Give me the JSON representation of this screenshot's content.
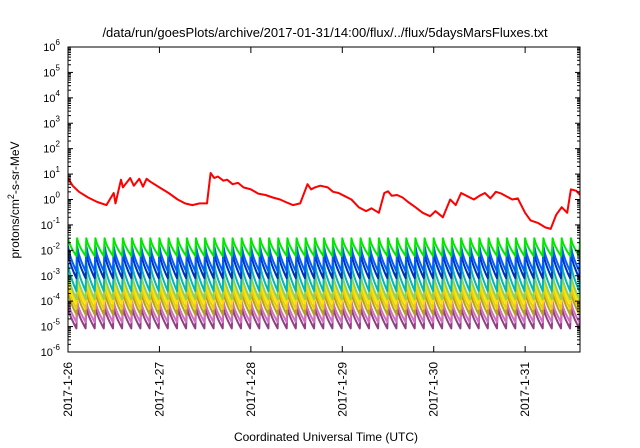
{
  "chart_data": {
    "type": "line",
    "title": "/data/run/goesPlots/archive/2017-01-31/14:00/flux/../flux/5daysMarsFluxes.txt",
    "xlabel": "Coordinated Universal Time (UTC)",
    "ylabel": {
      "prefix": "protons/cm",
      "sup": "2",
      "suffix": "-s-sr-MeV"
    },
    "yscale": "log",
    "ylim_exponents": [
      -6,
      6
    ],
    "y_ticks": [
      {
        "base": "10",
        "exp": "-6"
      },
      {
        "base": "10",
        "exp": "-5"
      },
      {
        "base": "10",
        "exp": "-4"
      },
      {
        "base": "10",
        "exp": "-3"
      },
      {
        "base": "10",
        "exp": "-2"
      },
      {
        "base": "10",
        "exp": "-1"
      },
      {
        "base": "10",
        "exp": "0"
      },
      {
        "base": "10",
        "exp": "1"
      },
      {
        "base": "10",
        "exp": "2"
      },
      {
        "base": "10",
        "exp": "3"
      },
      {
        "base": "10",
        "exp": "4"
      },
      {
        "base": "10",
        "exp": "5"
      },
      {
        "base": "10",
        "exp": "6"
      }
    ],
    "xlim_days": [
      0,
      5.6
    ],
    "x_ticks": [
      "2017-1-26",
      "2017-1-27",
      "2017-1-28",
      "2017-1-29",
      "2017-1-30",
      "2017-1-31"
    ],
    "grid": false,
    "legend": "none",
    "series": [
      {
        "color": "#ff0000",
        "x": [
          0.0,
          0.05,
          0.12,
          0.22,
          0.32,
          0.42,
          0.5,
          0.52,
          0.58,
          0.6,
          0.68,
          0.72,
          0.78,
          0.82,
          0.86,
          0.9,
          1.0,
          1.1,
          1.2,
          1.28,
          1.36,
          1.44,
          1.52,
          1.56,
          1.6,
          1.64,
          1.7,
          1.74,
          1.8,
          1.86,
          1.92,
          2.0,
          2.08,
          2.16,
          2.24,
          2.32,
          2.38,
          2.46,
          2.54,
          2.62,
          2.66,
          2.7,
          2.76,
          2.84,
          2.9,
          2.96,
          3.02,
          3.1,
          3.18,
          3.26,
          3.32,
          3.4,
          3.46,
          3.5,
          3.54,
          3.6,
          3.66,
          3.72,
          3.8,
          3.88,
          3.96,
          4.02,
          4.1,
          4.18,
          4.24,
          4.3,
          4.36,
          4.44,
          4.5,
          4.56,
          4.62,
          4.68,
          4.74,
          4.8,
          4.86,
          4.92,
          5.0,
          5.06,
          5.14,
          5.22,
          5.28,
          5.34,
          5.4,
          5.46,
          5.5,
          5.56,
          5.6
        ],
        "y": [
          7,
          3.5,
          2,
          1.2,
          0.8,
          0.6,
          1.8,
          0.7,
          6,
          3,
          7,
          3.5,
          6.5,
          3.2,
          6.5,
          5,
          3,
          1.8,
          1,
          0.7,
          0.6,
          0.7,
          0.7,
          11,
          7,
          8,
          5.5,
          6,
          4,
          4.5,
          3,
          2.5,
          1.7,
          1.5,
          1.2,
          1,
          0.8,
          0.6,
          0.7,
          4,
          2.5,
          3,
          3.5,
          3,
          2,
          1.8,
          1.4,
          1,
          0.5,
          0.35,
          0.45,
          0.3,
          1.8,
          2.1,
          1.4,
          1.5,
          1.2,
          0.8,
          0.5,
          0.3,
          0.22,
          0.35,
          0.2,
          1,
          0.6,
          1.8,
          1.4,
          1,
          1.4,
          1.8,
          1.1,
          2,
          1.7,
          1.3,
          1,
          1.1,
          0.3,
          0.15,
          0.12,
          0.08,
          0.07,
          0.25,
          0.5,
          0.3,
          2.5,
          2.2,
          1.5
        ]
      },
      {
        "color": "#00e800",
        "low": 0.006,
        "high": 0.03
      },
      {
        "color": "#0060ff",
        "low": 0.0015,
        "high": 0.015
      },
      {
        "color": "#0030c0",
        "low": 0.0008,
        "high": 0.008
      },
      {
        "color": "#00b8b8",
        "low": 0.00025,
        "high": 0.003
      },
      {
        "color": "#90d060",
        "low": 0.00012,
        "high": 0.0012
      },
      {
        "color": "#ffe000",
        "low": 8e-05,
        "high": 0.0007
      },
      {
        "color": "#e8d000",
        "low": 5e-05,
        "high": 0.0004
      },
      {
        "color": "#b8a020",
        "low": 3e-05,
        "high": 0.00025
      },
      {
        "color": "#d070c0",
        "low": 1.5e-05,
        "high": 0.0001
      },
      {
        "color": "#904080",
        "low": 8.5e-06,
        "high": 6e-05
      }
    ],
    "oscillation_period_days": 0.1
  }
}
